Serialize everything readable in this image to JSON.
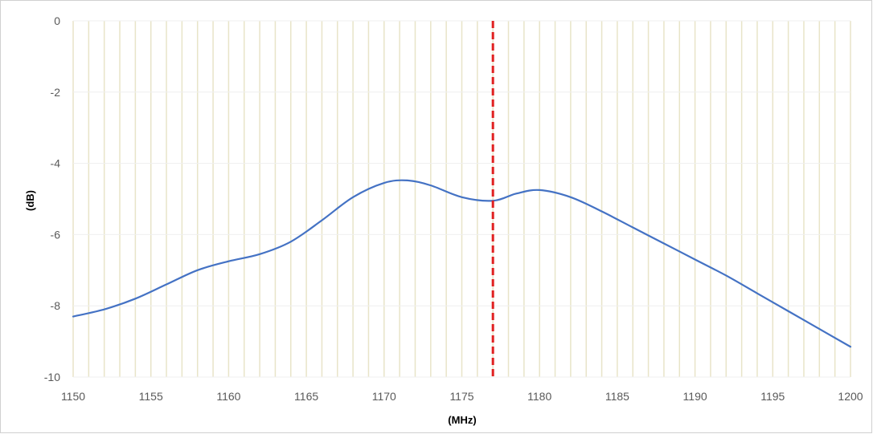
{
  "chart_data": {
    "type": "line",
    "title": "",
    "xlabel": "(MHz)",
    "ylabel": "(dB)",
    "xlim": [
      1150,
      1200
    ],
    "ylim": [
      -10,
      0
    ],
    "x_ticks": [
      1150,
      1155,
      1160,
      1165,
      1170,
      1175,
      1180,
      1185,
      1190,
      1195,
      1200
    ],
    "x_tick_labels": [
      "1150",
      "1155",
      "1160",
      "1165",
      "1170",
      "1175",
      "1180",
      "1185",
      "1190",
      "1195",
      "1200"
    ],
    "y_ticks": [
      0,
      -2,
      -4,
      -6,
      -8,
      -10
    ],
    "y_tick_labels": [
      "0",
      "-2",
      "-4",
      "-6",
      "-8",
      "-10"
    ],
    "vertical_gridline_step": 1,
    "grid": true,
    "legend": "none",
    "series": [
      {
        "x": [
          1150,
          1152,
          1154,
          1156,
          1158,
          1160,
          1162,
          1164,
          1166,
          1168,
          1170,
          1171.5,
          1173,
          1175,
          1177,
          1178.5,
          1180,
          1182,
          1184,
          1186,
          1188,
          1190,
          1192,
          1194,
          1196,
          1198,
          1200
        ],
        "y": [
          -8.3,
          -8.1,
          -7.8,
          -7.4,
          -7.0,
          -6.75,
          -6.55,
          -6.2,
          -5.6,
          -4.95,
          -4.55,
          -4.48,
          -4.62,
          -4.95,
          -5.05,
          -4.85,
          -4.75,
          -4.95,
          -5.35,
          -5.8,
          -6.25,
          -6.7,
          -7.15,
          -7.65,
          -8.15,
          -8.65,
          -9.15
        ],
        "color": "#4472C4"
      }
    ],
    "reference_lines": [
      {
        "orientation": "vertical",
        "x": 1177,
        "color": "#E02020",
        "style": "dashed"
      }
    ],
    "colors": {
      "gridline": "#E8E4C8",
      "axis_text": "#595959"
    }
  }
}
